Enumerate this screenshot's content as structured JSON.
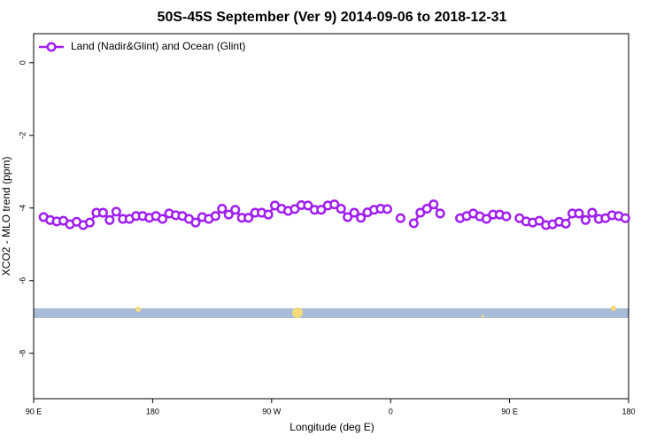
{
  "chart_data": {
    "type": "line",
    "title": "50S-45S September (Ver 9)   2014-09-06 to 2018-12-31",
    "xlabel": "Longitude (deg E)",
    "ylabel": "XCO2 - MLO trend (ppm)",
    "xlim": [
      90,
      540
    ],
    "ylim": [
      -9.25,
      0.8
    ],
    "xticks": [
      {
        "value": 90,
        "label": "90 E"
      },
      {
        "value": 180,
        "label": "180"
      },
      {
        "value": 270,
        "label": "90 W"
      },
      {
        "value": 360,
        "label": "0"
      },
      {
        "value": 450,
        "label": "90 E"
      },
      {
        "value": 540,
        "label": "180"
      }
    ],
    "yticks": [
      0,
      -2,
      -4,
      -6,
      -8
    ],
    "legend": "top-left",
    "x": [
      97.5,
      102.5,
      107.5,
      112.5,
      117.5,
      122.5,
      127.5,
      132.5,
      137.5,
      142.5,
      147.5,
      152.5,
      157.5,
      162.5,
      167.5,
      172.5,
      177.5,
      182.5,
      187.5,
      192.5,
      197.5,
      202.5,
      207.5,
      212.5,
      217.5,
      222.5,
      227.5,
      232.5,
      237.5,
      242.5,
      247.5,
      252.5,
      257.5,
      262.5,
      267.5,
      272.5,
      277.5,
      282.5,
      287.5,
      292.5,
      297.5,
      302.5,
      307.5,
      312.5,
      317.5,
      322.5,
      327.5,
      332.5,
      337.5,
      342.5,
      347.5,
      352.5,
      357.5,
      362.5,
      367.5,
      372.5,
      377.5,
      382.5,
      387.5,
      392.5,
      397.5,
      402.5,
      407.5,
      412.5,
      417.5,
      422.5,
      427.5,
      432.5,
      437.5,
      442.5,
      447.5,
      452.5,
      457.5,
      462.5,
      467.5,
      472.5,
      477.5,
      482.5,
      487.5,
      492.5,
      497.5,
      502.5,
      507.5,
      512.5,
      517.5,
      522.5,
      527.5,
      532.5,
      537.5
    ],
    "series": [
      {
        "name": "Land (Nadir&Glint) and Ocean (Glint)",
        "color": "#a020f0",
        "values": [
          -4.25,
          -4.33,
          -4.37,
          -4.35,
          -4.45,
          -4.38,
          -4.47,
          -4.4,
          -4.13,
          -4.13,
          -4.33,
          -4.1,
          -4.3,
          -4.3,
          -4.22,
          -4.22,
          -4.27,
          -4.22,
          -4.3,
          -4.15,
          -4.2,
          -4.22,
          -4.3,
          -4.4,
          -4.25,
          -4.3,
          -4.22,
          -4.02,
          -4.18,
          -4.05,
          -4.27,
          -4.27,
          -4.13,
          -4.13,
          -4.18,
          -3.93,
          -4.02,
          -4.08,
          -4.03,
          -3.92,
          -3.93,
          -4.05,
          -4.05,
          -3.93,
          -3.9,
          -4.02,
          -4.25,
          -4.13,
          -4.27,
          -4.12,
          -4.05,
          -4.02,
          -4.03,
          null,
          -4.28,
          null,
          -4.42,
          -4.13,
          -4.02,
          -3.9,
          -4.15,
          null,
          null,
          -4.28,
          -4.22,
          -4.15,
          -4.23,
          -4.3,
          -4.18,
          -4.18,
          -4.23,
          null,
          -4.28,
          -4.37,
          -4.4,
          -4.35,
          -4.47,
          -4.45,
          -4.38,
          -4.43,
          -4.15,
          -4.15,
          -4.33,
          -4.13,
          -4.3,
          -4.28,
          -4.2,
          -4.22,
          -4.28
        ]
      }
    ]
  }
}
